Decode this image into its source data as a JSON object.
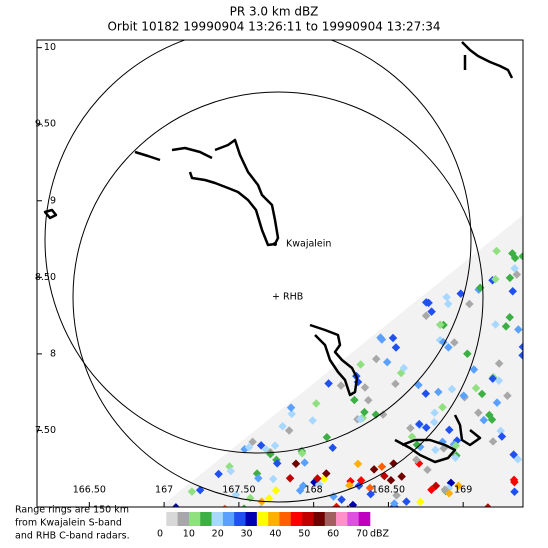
{
  "chart_data": {
    "type": "map",
    "title": "PR  3.0 km dBZ",
    "subtitle": "Orbit 10182 19990904 13:26:11 to 19990904 13:27:34",
    "xlim": [
      166.15,
      169.4
    ],
    "ylim": [
      7.0,
      10.05
    ],
    "xticks": [
      {
        "value": 166.5,
        "label": "166.50"
      },
      167,
      {
        "value": 167.5,
        "label": "167.50"
      },
      168,
      {
        "value": 168.5,
        "label": "168.50"
      },
      169
    ],
    "yticks": [
      10,
      {
        "value": 9.5,
        "label": "9.50"
      },
      9,
      {
        "value": 8.5,
        "label": "8.50"
      },
      8,
      {
        "value": 7.5,
        "label": "7.50"
      }
    ],
    "annotations": [
      "Kwajalein",
      "+ RHB"
    ],
    "note": [
      "Range rings are 150 km",
      "from Kwajalein S-band",
      "and RHB C-band radars."
    ],
    "colorbar": {
      "ticks": [
        0,
        10,
        20,
        30,
        40,
        50,
        60,
        70
      ],
      "label": "dBZ",
      "colors": [
        "#ffffff",
        "#d8d8d8",
        "#a8a8a8",
        "#90e080",
        "#3cb044",
        "#a8d8ff",
        "#5aa0ff",
        "#2050f0",
        "#0000b0",
        "#ffff00",
        "#ffb000",
        "#ff6000",
        "#ff0000",
        "#c00000",
        "#700000",
        "#a06060",
        "#ff90c8",
        "#e050e0",
        "#c000c0"
      ]
    }
  }
}
